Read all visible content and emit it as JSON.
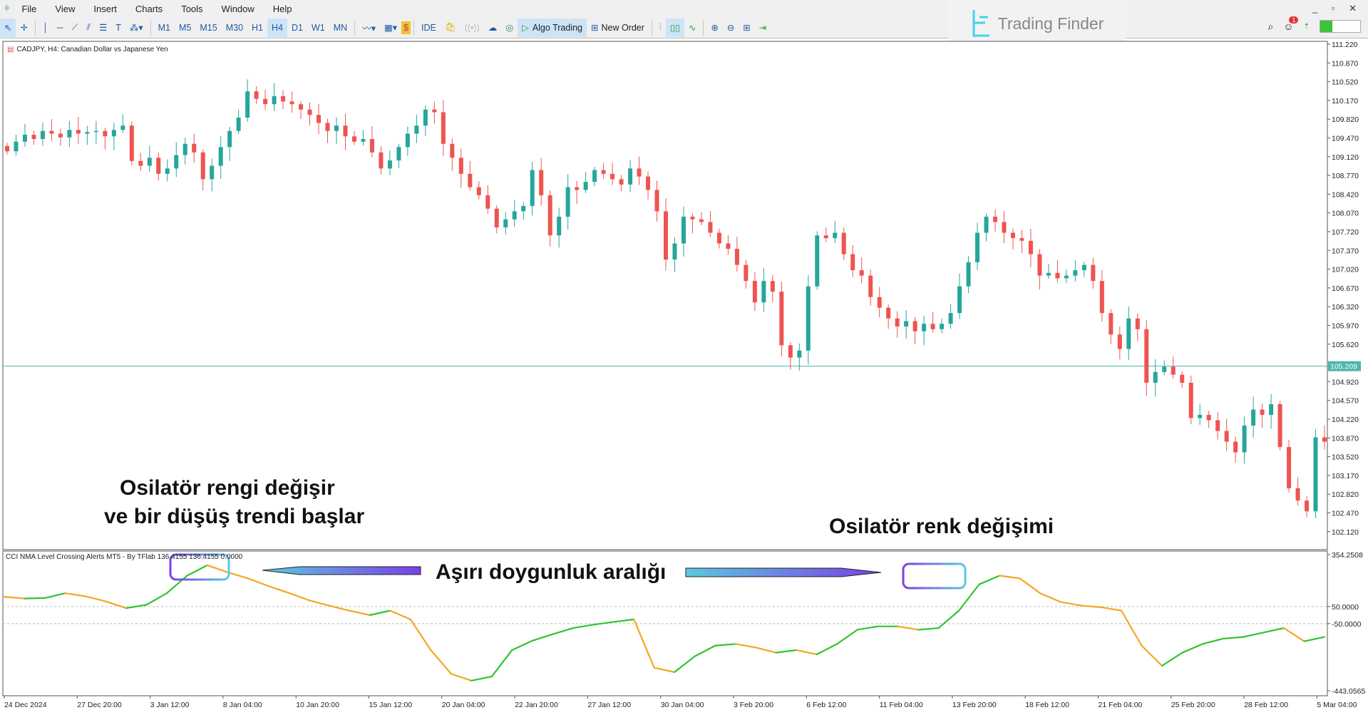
{
  "menu": [
    "File",
    "View",
    "Insert",
    "Charts",
    "Tools",
    "Window",
    "Help"
  ],
  "timeframes": [
    "M1",
    "M5",
    "M15",
    "M30",
    "H1",
    "H4",
    "D1",
    "W1",
    "MN"
  ],
  "active_timeframe": "H4",
  "toolbar": {
    "ide": "IDE",
    "algo_trading": "Algo Trading",
    "new_order": "New Order"
  },
  "watermark": "Trading Finder",
  "notification_count": "1",
  "symbol_label": "CADJPY, H4:  Canadian Dollar vs Japanese Yen",
  "indicator_label": "CCI NMA Level Crossing Alerts MT5 - By TFlab 136.4155 136.4155 0.0000",
  "annotations": {
    "left_line1": "Osilatör rengi değişir",
    "left_line2": "ve bir düşüş trendi başlar",
    "right": "Osilatör renk değişimi",
    "center": "Aşırı doygunluk aralığı"
  },
  "colors": {
    "bull": "#26a69a",
    "bear": "#ef5350",
    "osc_up": "#2ec52e",
    "osc_down": "#f5a623",
    "price_line": "#4db6ac",
    "box_purple": "#7b3fe4",
    "box_cyan": "#5bc8e0"
  },
  "chart_data": [
    {
      "type": "candlestick",
      "symbol": "CADJPY",
      "timeframe": "H4",
      "current_price": "105.209",
      "price_ticks": [
        "111.220",
        "110.870",
        "110.520",
        "110.170",
        "109.820",
        "109.470",
        "109.120",
        "108.770",
        "108.420",
        "108.070",
        "107.720",
        "107.370",
        "107.020",
        "106.670",
        "106.320",
        "105.970",
        "105.620",
        "104.920",
        "104.570",
        "104.220",
        "103.870",
        "103.520",
        "103.170",
        "102.820",
        "102.470",
        "102.120"
      ],
      "ylim": [
        102.12,
        111.22
      ],
      "closes": [
        109.22,
        109.4,
        109.53,
        109.45,
        109.6,
        109.55,
        109.48,
        109.62,
        109.55,
        109.58,
        109.6,
        109.5,
        109.62,
        109.7,
        109.04,
        108.95,
        109.1,
        108.8,
        108.9,
        109.15,
        109.36,
        109.2,
        108.7,
        108.95,
        109.3,
        109.6,
        109.85,
        110.34,
        110.2,
        110.1,
        110.25,
        110.15,
        110.1,
        110.0,
        109.9,
        109.75,
        109.6,
        109.7,
        109.5,
        109.4,
        109.45,
        109.2,
        108.9,
        109.05,
        109.3,
        109.55,
        109.7,
        110.0,
        109.95,
        109.36,
        109.1,
        108.8,
        108.55,
        108.4,
        108.15,
        107.8,
        107.95,
        108.1,
        108.2,
        108.87,
        108.4,
        107.65,
        108.0,
        108.55,
        108.5,
        108.65,
        108.87,
        108.8,
        108.7,
        108.6,
        108.9,
        108.75,
        108.5,
        108.1,
        107.2,
        107.5,
        108.0,
        107.95,
        107.9,
        107.7,
        107.5,
        107.4,
        107.1,
        106.8,
        106.4,
        106.8,
        106.6,
        105.6,
        105.37,
        105.5,
        106.7,
        107.65,
        107.6,
        107.7,
        107.3,
        107.0,
        106.9,
        106.5,
        106.3,
        106.1,
        105.95,
        106.05,
        105.86,
        106.0,
        105.9,
        106.0,
        106.2,
        106.7,
        107.15,
        107.7,
        108.0,
        107.9,
        107.7,
        107.6,
        107.55,
        107.3,
        106.9,
        106.95,
        106.85,
        106.9,
        107.0,
        107.1,
        106.8,
        106.2,
        105.8,
        105.53,
        106.1,
        105.9,
        104.9,
        105.1,
        105.2,
        105.05,
        104.9,
        104.24,
        104.3,
        104.2,
        104.0,
        103.8,
        103.6,
        104.1,
        104.4,
        104.3,
        104.5,
        103.7,
        102.93,
        102.7,
        102.5,
        103.88,
        103.8
      ]
    },
    {
      "type": "line",
      "name": "CCI NMA Level Crossing Alerts MT5",
      "ylim": [
        -443.0565,
        354.2508
      ],
      "y_ticks": [
        "354.2508",
        "50.0000",
        "-50.0000",
        "-443.0565"
      ],
      "levels": [
        50,
        -50
      ],
      "values": [
        107,
        97,
        100,
        128,
        110,
        80,
        41,
        60,
        128,
        231,
        292,
        250,
        215,
        170,
        130,
        87,
        55,
        26,
        0,
        26,
        -25,
        -205,
        -344,
        -384,
        -360,
        -205,
        -150,
        -112,
        -76,
        -56,
        -40,
        -25,
        -308,
        -334,
        -241,
        -179,
        -169,
        -190,
        -220,
        -205,
        -230,
        -169,
        -86,
        -66,
        -66,
        -86,
        -76,
        26,
        180,
        231,
        215,
        128,
        77,
        56,
        46,
        26,
        -179,
        -297,
        -220,
        -169,
        -138,
        -128,
        -102,
        -76,
        -153,
        -128
      ],
      "x_labels": [
        "24 Dec 2024",
        "27 Dec 20:00",
        "3 Jan 12:00",
        "8 Jan 04:00",
        "10 Jan 20:00",
        "15 Jan 12:00",
        "20 Jan 04:00",
        "22 Jan 20:00",
        "27 Jan 12:00",
        "30 Jan 04:00",
        "3 Feb 20:00",
        "6 Feb 12:00",
        "11 Feb 04:00",
        "13 Feb 20:00",
        "18 Feb 12:00",
        "21 Feb 04:00",
        "25 Feb 20:00",
        "28 Feb 12:00",
        "5 Mar 04:00"
      ]
    }
  ]
}
